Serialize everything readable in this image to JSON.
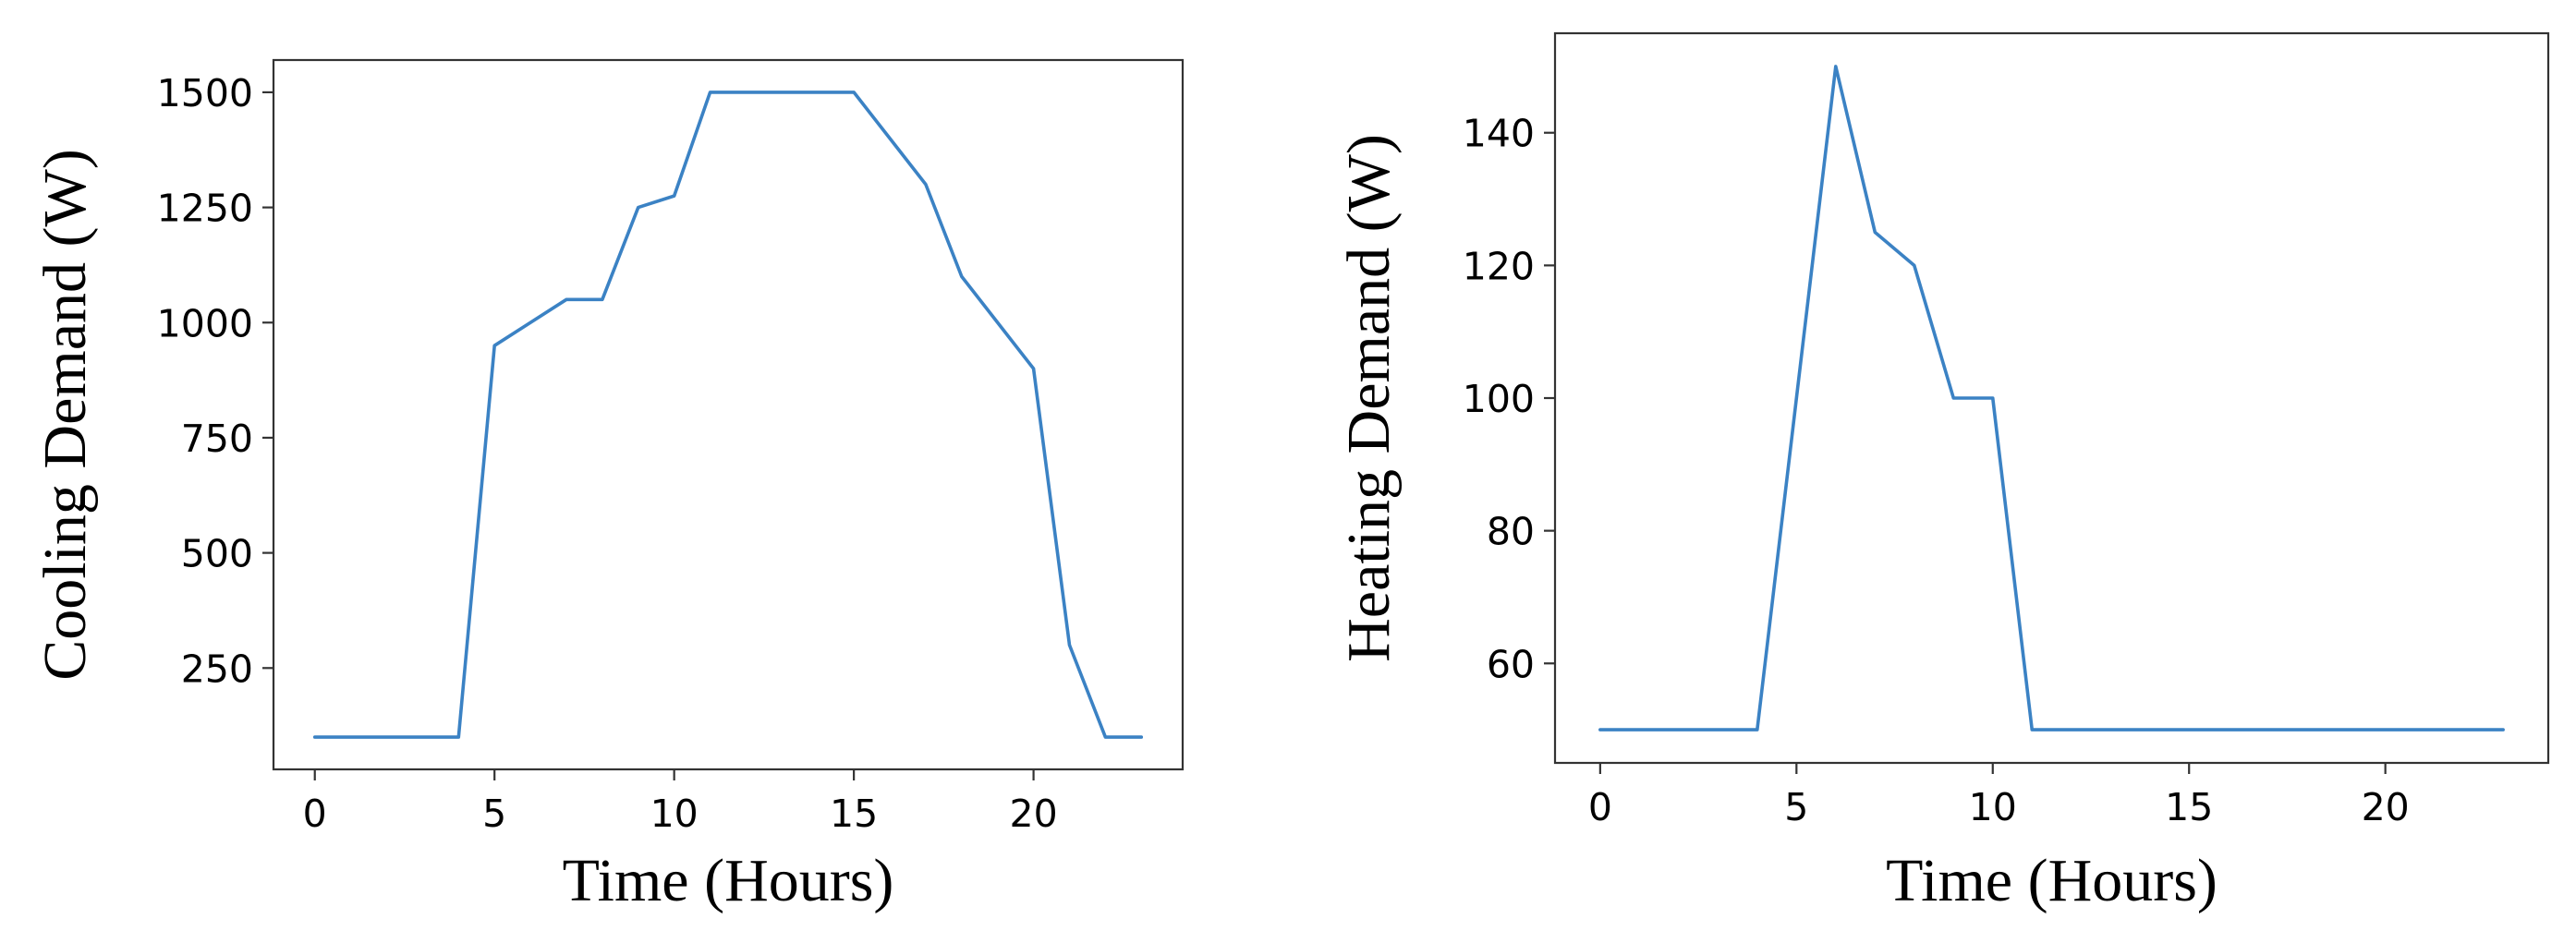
{
  "chart_data": [
    {
      "type": "line",
      "title": "",
      "xlabel": "Time (Hours)",
      "ylabel": "Cooling Demand (W)",
      "xlim": [
        -1.15,
        24.15
      ],
      "ylim": [
        30,
        1570
      ],
      "xticks": [
        0,
        5,
        10,
        15,
        20
      ],
      "yticks": [
        250,
        500,
        750,
        1000,
        1250,
        1500
      ],
      "grid": false,
      "legend": "none",
      "series": [
        {
          "color": "#3b82c4",
          "x": [
            0,
            1,
            2,
            3,
            4,
            5,
            6,
            7,
            8,
            9,
            10,
            11,
            12,
            13,
            14,
            15,
            16,
            17,
            18,
            19,
            20,
            21,
            22,
            23
          ],
          "y": [
            100,
            100,
            100,
            100,
            100,
            950,
            1000,
            1050,
            1050,
            1250,
            1275,
            1500,
            1500,
            1500,
            1500,
            1500,
            1400,
            1300,
            1100,
            1000,
            900,
            300,
            100,
            100
          ]
        }
      ]
    },
    {
      "type": "line",
      "title": "",
      "xlabel": "Time (Hours)",
      "ylabel": "Heating Demand (W)",
      "xlim": [
        -1.15,
        24.15
      ],
      "ylim": [
        45,
        155
      ],
      "xticks": [
        0,
        5,
        10,
        15,
        20
      ],
      "yticks": [
        60,
        80,
        100,
        120,
        140
      ],
      "grid": false,
      "legend": "none",
      "series": [
        {
          "color": "#3b82c4",
          "x": [
            0,
            1,
            2,
            3,
            4,
            5,
            6,
            7,
            8,
            9,
            10,
            11,
            12,
            13,
            14,
            15,
            16,
            17,
            18,
            19,
            20,
            21,
            22,
            23
          ],
          "y": [
            50,
            50,
            50,
            50,
            50,
            100,
            150,
            125,
            120,
            100,
            100,
            50,
            50,
            50,
            50,
            50,
            50,
            50,
            50,
            50,
            50,
            50,
            50,
            50
          ]
        }
      ]
    }
  ]
}
